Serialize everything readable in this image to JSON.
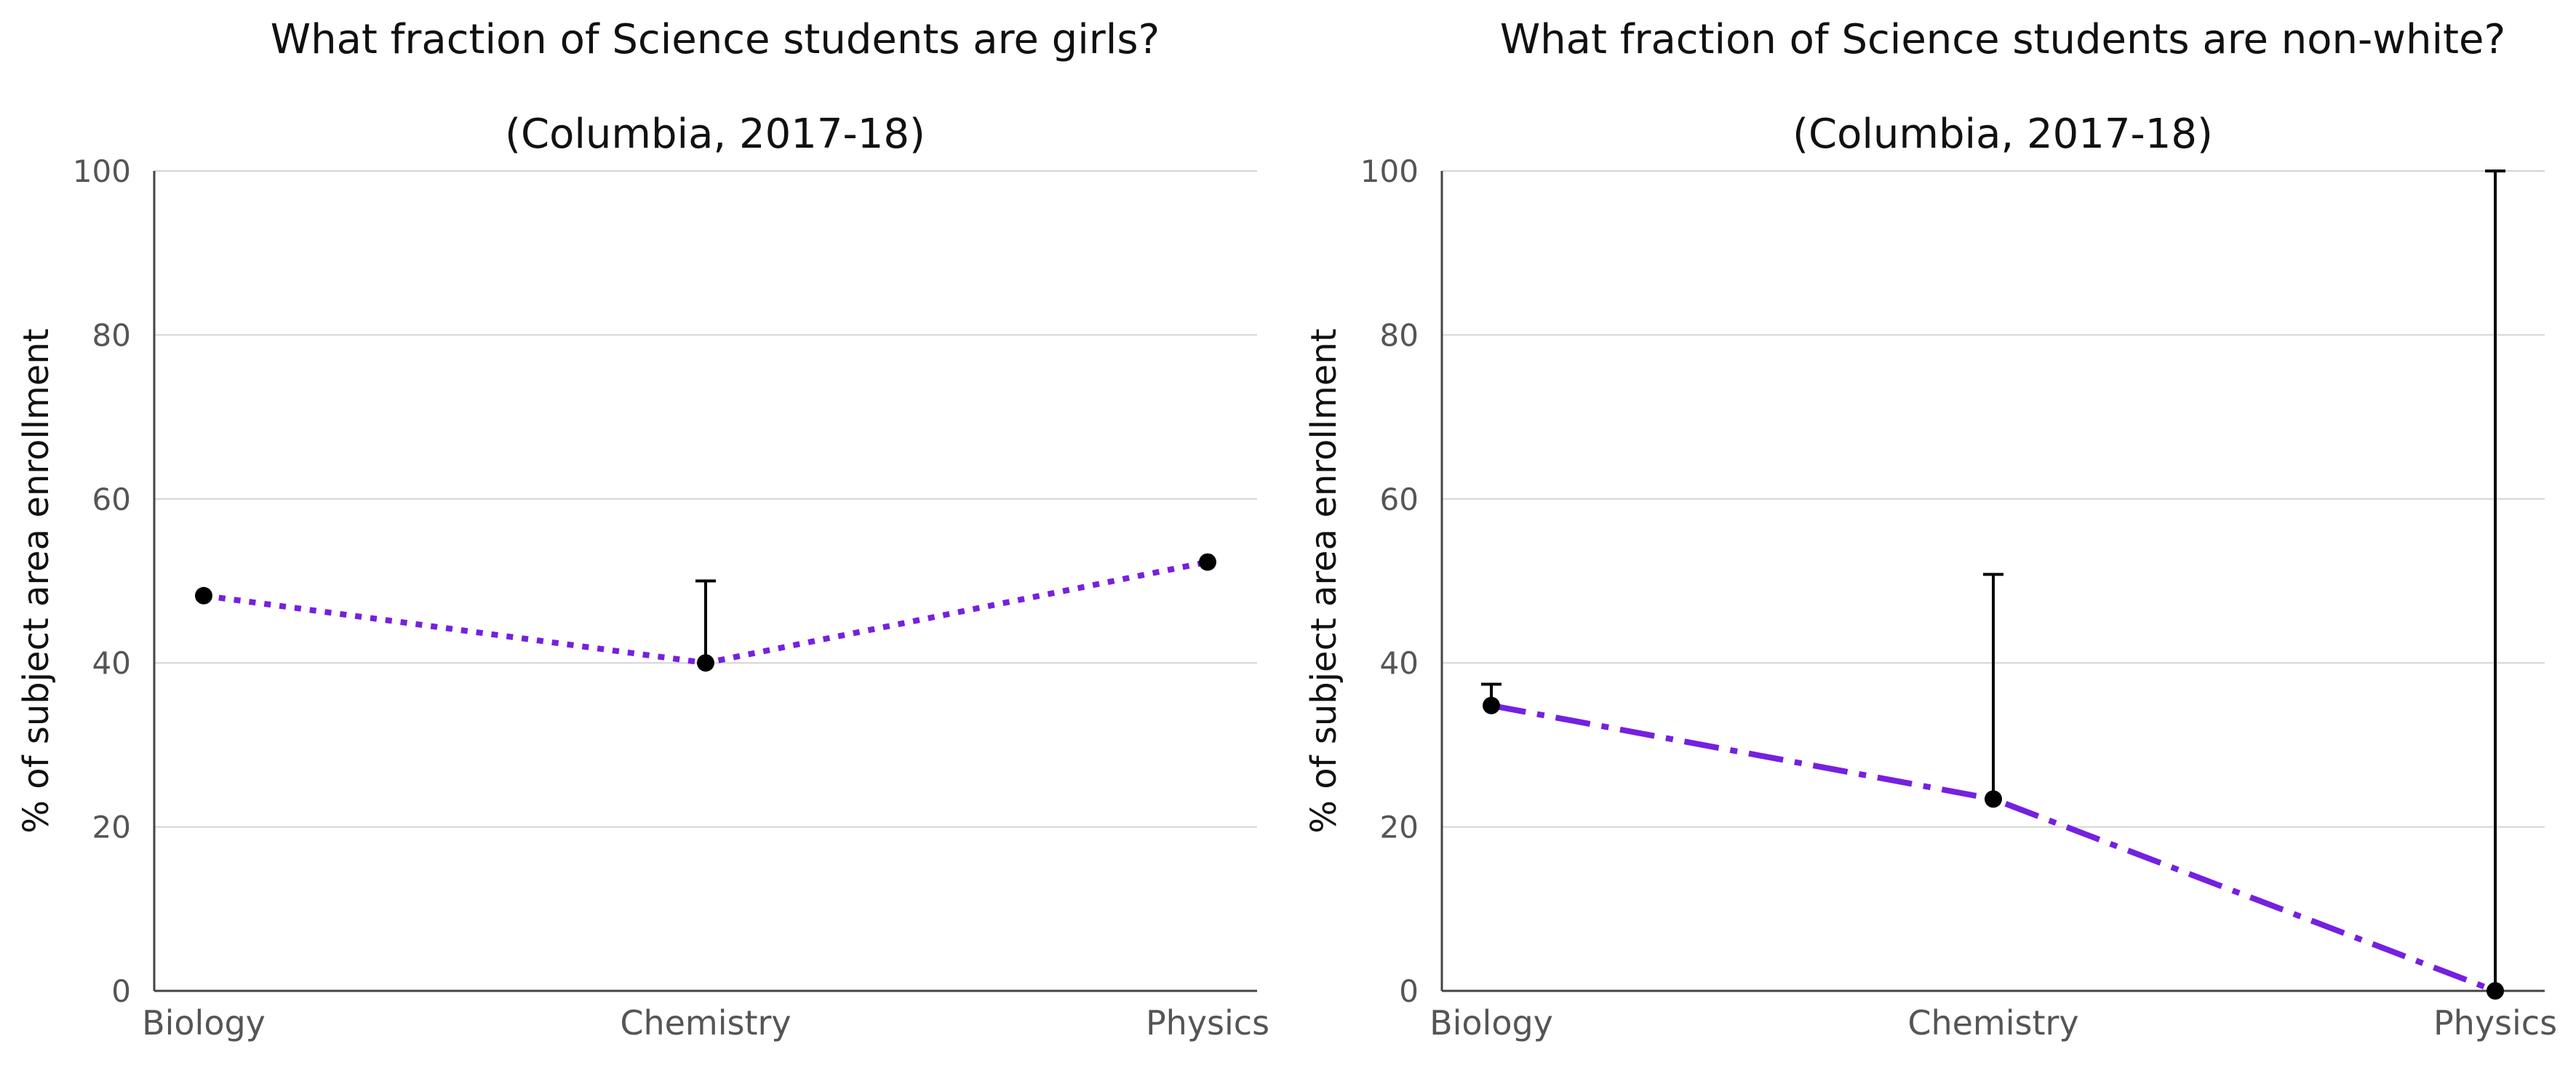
{
  "chart_data": [
    {
      "type": "line",
      "title": "What fraction of Science students are girls?",
      "subtitle": "(Columbia, 2017-18)",
      "xlabel": "",
      "ylabel": "% of subject area enrollment",
      "categories": [
        "Biology",
        "Chemistry",
        "Physics"
      ],
      "values": [
        48.2,
        40.0,
        52.3
      ],
      "error_upper": [
        48.2,
        50.0,
        52.3
      ],
      "ylim": [
        0,
        100
      ],
      "yticks": [
        "0",
        "20",
        "40",
        "60",
        "80",
        "100"
      ],
      "line_style": "dotted",
      "line_color": "#7520e0",
      "marker_color": "#000000",
      "grid": "horizontal"
    },
    {
      "type": "line",
      "title": "What fraction of Science students are non-white?",
      "subtitle": "(Columbia, 2017-18)",
      "xlabel": "",
      "ylabel": "% of subject area enrollment",
      "categories": [
        "Biology",
        "Chemistry",
        "Physics"
      ],
      "values": [
        34.8,
        23.4,
        0.0
      ],
      "error_upper": [
        37.4,
        50.8,
        100.0
      ],
      "ylim": [
        0,
        100
      ],
      "yticks": [
        "0",
        "20",
        "40",
        "60",
        "80",
        "100"
      ],
      "line_style": "dash-dot",
      "line_color": "#7520e0",
      "marker_color": "#000000",
      "grid": "horizontal"
    }
  ]
}
